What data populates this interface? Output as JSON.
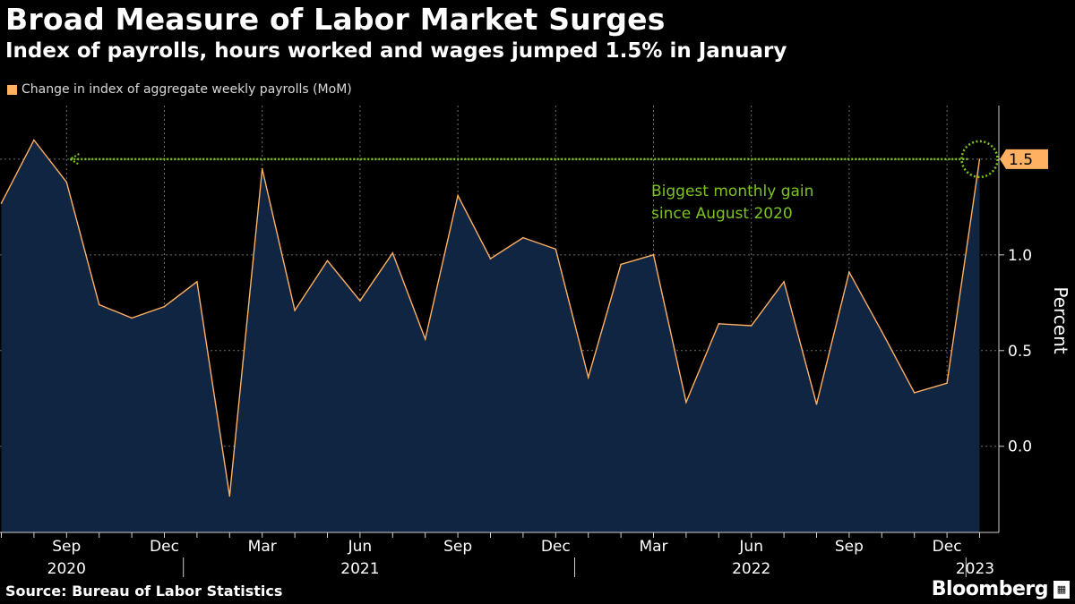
{
  "header": {
    "title": "Broad Measure of Labor Market Surges",
    "subtitle": "Index of payrolls, hours worked and wages jumped 1.5% in January"
  },
  "legend": {
    "label": "Change in index of aggregate weekly payrolls (MoM)"
  },
  "footer": {
    "source": "Source: Bureau of Labor Statistics",
    "brand": "Bloomberg"
  },
  "colors": {
    "background": "#000000",
    "line": "#ffb061",
    "area": "#0f2542",
    "grid": "#6e6e6e",
    "annotation": "#7cc41f",
    "callout_bg": "#ffb061"
  },
  "chart_data": {
    "type": "area",
    "x": [
      "2020-07",
      "2020-08",
      "2020-09",
      "2020-10",
      "2020-11",
      "2020-12",
      "2021-01",
      "2021-02",
      "2021-03",
      "2021-04",
      "2021-05",
      "2021-06",
      "2021-07",
      "2021-08",
      "2021-09",
      "2021-10",
      "2021-11",
      "2021-12",
      "2022-01",
      "2022-02",
      "2022-03",
      "2022-04",
      "2022-05",
      "2022-06",
      "2022-07",
      "2022-08",
      "2022-09",
      "2022-10",
      "2022-11",
      "2022-12",
      "2023-01"
    ],
    "series": [
      {
        "name": "Change in index of aggregate weekly payrolls (MoM)",
        "values": [
          1.27,
          1.6,
          1.38,
          0.74,
          0.67,
          0.73,
          0.86,
          -0.26,
          1.45,
          0.71,
          0.97,
          0.76,
          1.01,
          0.56,
          1.31,
          0.98,
          1.09,
          1.03,
          0.36,
          0.95,
          1.0,
          0.23,
          0.64,
          0.63,
          0.86,
          0.22,
          0.91,
          0.6,
          0.28,
          0.33,
          1.5
        ]
      }
    ],
    "ylim": [
      -0.45,
      1.78
    ],
    "yticks": [
      {
        "value": 0.0,
        "label": "0.0"
      },
      {
        "value": 0.5,
        "label": "0.5"
      },
      {
        "value": 1.0,
        "label": "1.0"
      },
      {
        "value": 1.5,
        "label": "1.5"
      }
    ],
    "ylabel": "Percent",
    "xtick_months": [
      {
        "date": "2020-09",
        "label": "Sep"
      },
      {
        "date": "2020-12",
        "label": "Dec"
      },
      {
        "date": "2021-03",
        "label": "Mar"
      },
      {
        "date": "2021-06",
        "label": "Jun"
      },
      {
        "date": "2021-09",
        "label": "Sep"
      },
      {
        "date": "2021-12",
        "label": "Dec"
      },
      {
        "date": "2022-03",
        "label": "Mar"
      },
      {
        "date": "2022-06",
        "label": "Jun"
      },
      {
        "date": "2022-09",
        "label": "Sep"
      },
      {
        "date": "2022-12",
        "label": "Dec"
      }
    ],
    "year_labels": [
      {
        "date": "2020-09",
        "label": "2020"
      },
      {
        "date": "2021-06",
        "label": "2021"
      },
      {
        "date": "2022-06",
        "label": "2022"
      },
      {
        "date": "2023-01",
        "label": "2023"
      }
    ],
    "year_boundaries": [
      "2021-01",
      "2022-01",
      "2023-01"
    ],
    "highlight": {
      "value": 1.5,
      "label": "1.5"
    },
    "annotation": {
      "lines": [
        "Biggest monthly gain",
        "since August 2020"
      ],
      "reference_value": 1.5,
      "from_date": "2020-09",
      "to_date": "2023-01"
    }
  }
}
